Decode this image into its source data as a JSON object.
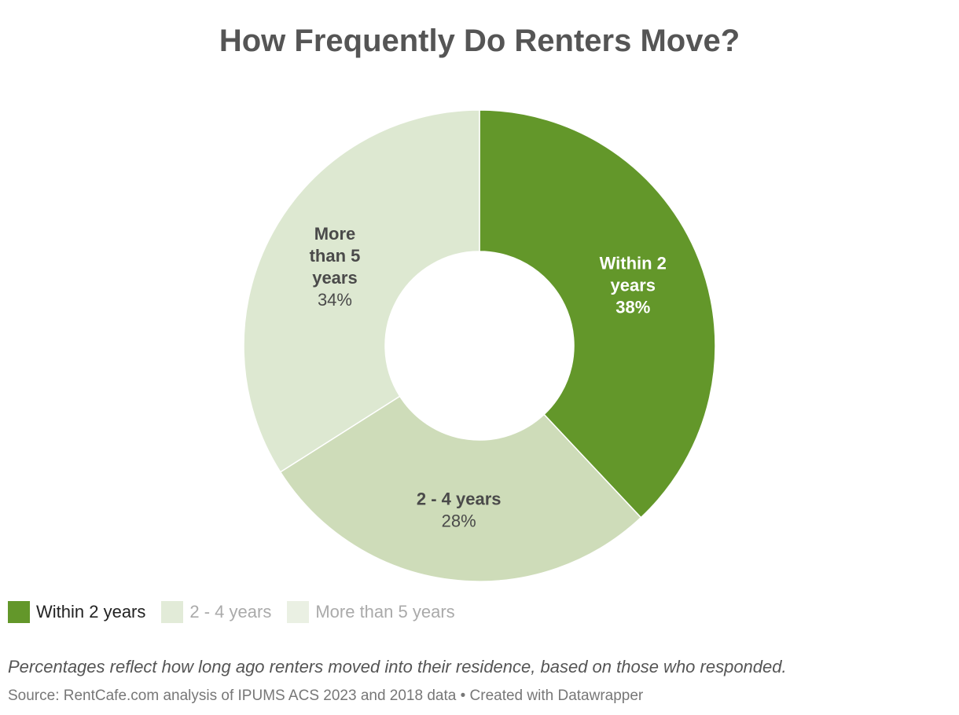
{
  "title": "How Frequently Do Renters Move?",
  "chart_data": {
    "type": "pie",
    "donut": true,
    "title": "How Frequently Do Renters Move?",
    "slices": [
      {
        "label": "Within 2 years",
        "label_lines": [
          "Within 2",
          "years"
        ],
        "value": 38,
        "value_label": "38%",
        "color": "#63972a",
        "text_color": "#ffffff"
      },
      {
        "label": "2 - 4 years",
        "label_lines": [
          "2 - 4 years"
        ],
        "value": 28,
        "value_label": "28%",
        "color": "#cedcb9",
        "text_color": "#4a4a4a"
      },
      {
        "label": "More than 5 years",
        "label_lines": [
          "More",
          "than 5",
          "years"
        ],
        "value": 34,
        "value_label": "34%",
        "color": "#dde8d1",
        "text_color": "#4a4a4a"
      }
    ],
    "start": "12 o'clock",
    "direction": "clockwise"
  },
  "legend": {
    "items": [
      {
        "label": "Within 2 years",
        "color": "#63972a",
        "text_color": "#222222"
      },
      {
        "label": "2 - 4 years",
        "color": "#e2ebd8",
        "text_color": "#aaaaaa"
      },
      {
        "label": "More than 5 years",
        "color": "#eaf0e3",
        "text_color": "#aaaaaa"
      }
    ]
  },
  "note": "Percentages reflect how long ago renters moved into their residence, based on those who responded.",
  "source": "Source: RentCafe.com analysis of IPUMS ACS 2023 and 2018 data • Created with Datawrapper"
}
